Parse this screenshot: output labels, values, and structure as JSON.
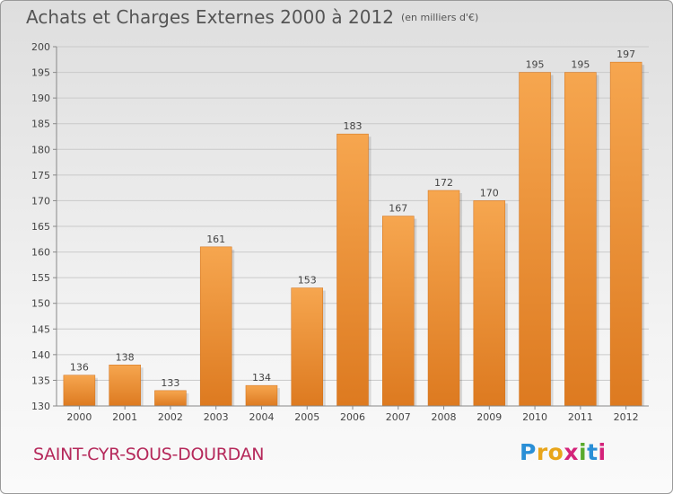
{
  "header": {
    "title": "Achats et Charges Externes 2000 à 2012",
    "unit": "(en milliers d'€)"
  },
  "footer": {
    "location": "SAINT-CYR-SOUS-DOURDAN",
    "logo": {
      "letters": [
        "P",
        "r",
        "o",
        "x",
        "i",
        "t",
        "i"
      ],
      "colors": [
        "#2a8fd6",
        "#e8a51a",
        "#e8a51a",
        "#d4237a",
        "#5aaa2c",
        "#2a8fd6",
        "#d4237a"
      ]
    }
  },
  "chart_data": {
    "type": "bar",
    "title": "Achats et Charges Externes 2000 à 2012",
    "subtitle": "(en milliers d'€)",
    "xlabel": "",
    "ylabel": "",
    "categories": [
      "2000",
      "2001",
      "2002",
      "2003",
      "2004",
      "2005",
      "2006",
      "2007",
      "2008",
      "2009",
      "2010",
      "2011",
      "2012"
    ],
    "values": [
      136,
      138,
      133,
      161,
      134,
      153,
      183,
      167,
      172,
      170,
      195,
      195,
      197
    ],
    "ylim": [
      130,
      200
    ],
    "yticks": [
      130,
      135,
      140,
      145,
      150,
      155,
      160,
      165,
      170,
      175,
      180,
      185,
      190,
      195,
      200
    ],
    "grid": "y",
    "bar_color": "#f0953f"
  }
}
